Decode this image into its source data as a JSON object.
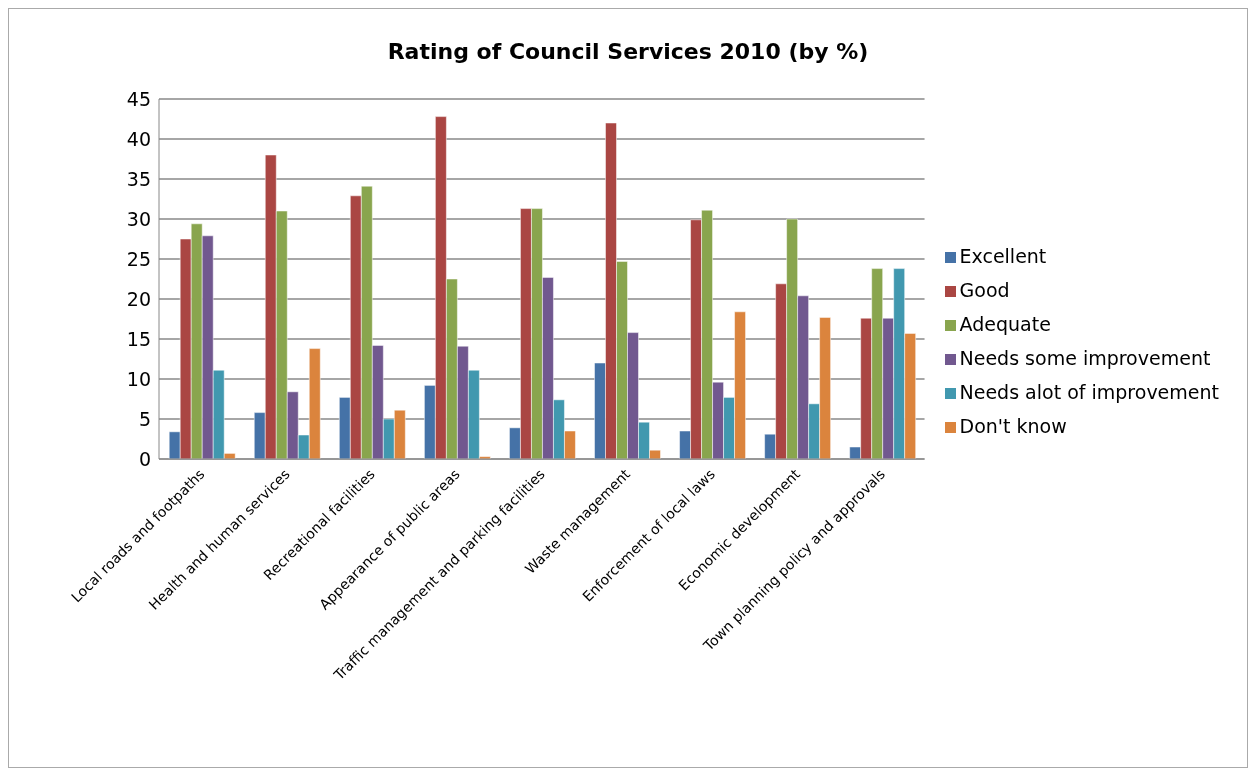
{
  "chart_data": {
    "type": "bar",
    "title": "Rating of Council Services 2010 (by %)",
    "categories": [
      "Local roads and footpaths",
      "Health and human services",
      "Recreational facilities",
      "Appearance of public areas",
      "Traffic management and parking facilities",
      "Waste management",
      "Enforcement of local laws",
      "Economic development",
      "Town planning policy and approvals"
    ],
    "series": [
      {
        "name": "Excellent",
        "color": "#4572a7",
        "values": [
          3.4,
          5.8,
          7.7,
          9.2,
          3.9,
          12.0,
          3.5,
          3.1,
          1.5
        ]
      },
      {
        "name": "Good",
        "color": "#aa4643",
        "values": [
          27.5,
          38.0,
          32.9,
          42.8,
          31.3,
          42.0,
          29.9,
          21.9,
          17.6
        ]
      },
      {
        "name": "Adequate",
        "color": "#89a54e",
        "values": [
          29.4,
          31.0,
          34.1,
          22.5,
          31.3,
          24.7,
          31.1,
          30.0,
          23.8
        ]
      },
      {
        "name": "Needs some improvement",
        "color": "#71588f",
        "values": [
          27.9,
          8.4,
          14.2,
          14.1,
          22.7,
          15.8,
          9.6,
          20.4,
          17.6
        ]
      },
      {
        "name": "Needs alot of improvement",
        "color": "#4198af",
        "values": [
          11.1,
          3.0,
          5.0,
          11.1,
          7.4,
          4.6,
          7.7,
          6.9,
          23.8
        ]
      },
      {
        "name": "Don't know",
        "color": "#db843d",
        "values": [
          0.7,
          13.8,
          6.1,
          0.3,
          3.5,
          1.1,
          18.4,
          17.7,
          15.7
        ]
      }
    ],
    "ylim": [
      0,
      45
    ],
    "yticks": [
      0,
      5,
      10,
      15,
      20,
      25,
      30,
      35,
      40,
      45
    ],
    "grid": "y",
    "legend": "right"
  }
}
